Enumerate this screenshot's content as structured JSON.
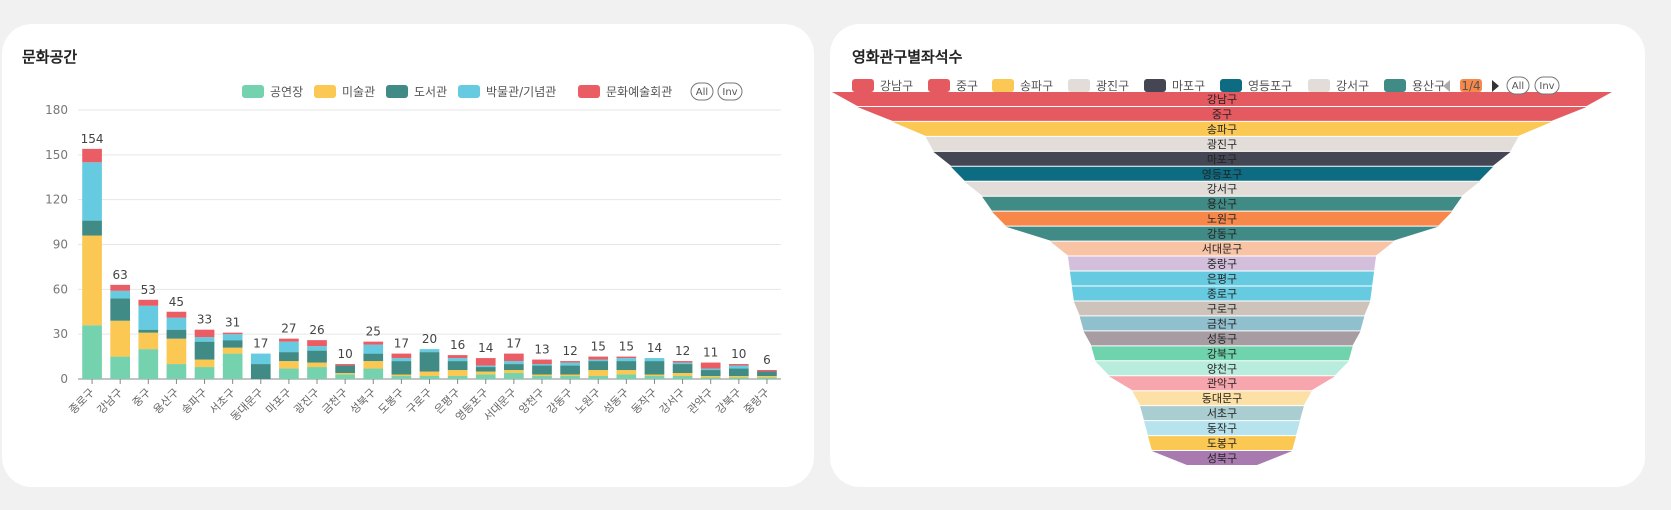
{
  "charts": [
    {
      "title": "문화공간",
      "controls": {
        "all": "All",
        "inv": "Inv"
      },
      "chart_data": {
        "type": "bar",
        "stacked": true,
        "categories": [
          "종로구",
          "강남구",
          "중구",
          "용산구",
          "송파구",
          "서초구",
          "동대문구",
          "마포구",
          "광진구",
          "금천구",
          "성북구",
          "도봉구",
          "구로구",
          "은평구",
          "영등포구",
          "서대문구",
          "양천구",
          "강동구",
          "노원구",
          "성동구",
          "동작구",
          "강서구",
          "관악구",
          "강북구",
          "중랑구"
        ],
        "series": [
          {
            "name": "공연장",
            "color": "#74d3ae",
            "values": [
              36,
              15,
              20,
              10,
              8,
              17,
              0,
              7,
              8,
              3,
              7,
              2,
              2,
              2,
              3,
              4,
              2,
              2,
              2,
              3,
              2,
              2,
              1,
              1,
              1
            ]
          },
          {
            "name": "미술관",
            "color": "#fbc853",
            "values": [
              60,
              24,
              11,
              17,
              5,
              4,
              0,
              5,
              3,
              1,
              5,
              1,
              3,
              4,
              2,
              2,
              1,
              1,
              4,
              3,
              1,
              2,
              1,
              1,
              1
            ]
          },
          {
            "name": "도서관",
            "color": "#418b86",
            "values": [
              10,
              15,
              2,
              6,
              12,
              5,
              10,
              6,
              8,
              5,
              5,
              9,
              13,
              6,
              3,
              4,
              6,
              6,
              6,
              6,
              9,
              6,
              4,
              5,
              3
            ]
          },
          {
            "name": "박물관/기념관",
            "color": "#66cbe0",
            "values": [
              39,
              5,
              16,
              8,
              3,
              4,
              7,
              7,
              3,
              0,
              6,
              2,
              2,
              2,
              1,
              2,
              1,
              2,
              1,
              2,
              2,
              1,
              1,
              2,
              0
            ]
          },
          {
            "name": "문화예술회관",
            "color": "#ea5d64",
            "values": [
              9,
              4,
              4,
              4,
              5,
              1,
              0,
              2,
              4,
              1,
              2,
              3,
              0,
              2,
              5,
              5,
              3,
              1,
              2,
              1,
              0,
              1,
              4,
              1,
              1
            ]
          }
        ],
        "totals": [
          154,
          63,
          53,
          45,
          33,
          31,
          17,
          27,
          26,
          10,
          25,
          17,
          20,
          16,
          14,
          17,
          13,
          12,
          15,
          15,
          14,
          12,
          11,
          10,
          6
        ],
        "ylim": [
          0,
          180
        ],
        "yticks": [
          0,
          30,
          60,
          90,
          120,
          150,
          180
        ],
        "grid": true,
        "legend": "top-right"
      }
    },
    {
      "title": "영화관구별좌석수",
      "controls": {
        "all": "All",
        "inv": "Inv",
        "page": "1/4"
      },
      "legend_items": [
        {
          "name": "강남구",
          "color": "#e55a60"
        },
        {
          "name": "중구",
          "color": "#e55a60"
        },
        {
          "name": "송파구",
          "color": "#fbc853"
        },
        {
          "name": "광진구",
          "color": "#e2ddd8"
        },
        {
          "name": "마포구",
          "color": "#444653"
        },
        {
          "name": "영등포구",
          "color": "#0d6b82"
        },
        {
          "name": "강서구",
          "color": "#e2ddd8"
        },
        {
          "name": "용산구",
          "color": "#418b86"
        },
        {
          "name": "",
          "color": "#f7884a"
        }
      ],
      "chart_data": {
        "type": "funnel",
        "categories": [
          "강남구",
          "중구",
          "송파구",
          "광진구",
          "마포구",
          "영등포구",
          "강서구",
          "용산구",
          "노원구",
          "강동구",
          "서대문구",
          "중랑구",
          "은평구",
          "종로구",
          "구로구",
          "금천구",
          "성동구",
          "강북구",
          "양천구",
          "관악구",
          "동대문구",
          "서초구",
          "동작구",
          "도봉구",
          "성북구"
        ],
        "values": [
          100,
          93.5,
          84.5,
          76,
          74,
          69.5,
          66,
          61.5,
          59,
          55.5,
          44,
          39.5,
          39,
          38.5,
          38,
          36.5,
          35.5,
          33.5,
          32.5,
          29,
          23,
          21,
          20,
          19,
          18
        ],
        "colors": [
          "#e55a60",
          "#e55a60",
          "#fbc853",
          "#e2ddd8",
          "#444653",
          "#0d6b82",
          "#e2ddd8",
          "#418b86",
          "#f7884a",
          "#418b86",
          "#f9c3a6",
          "#d3bfdc",
          "#66cbe0",
          "#66cbe0",
          "#cdc3bb",
          "#90bfcd",
          "#a69ca1",
          "#6fd3ae",
          "#b8ecdc",
          "#f7a6ad",
          "#fde0a5",
          "#a9cdd0",
          "#b7e3ee",
          "#fbc853",
          "#a97ab0"
        ]
      }
    }
  ]
}
